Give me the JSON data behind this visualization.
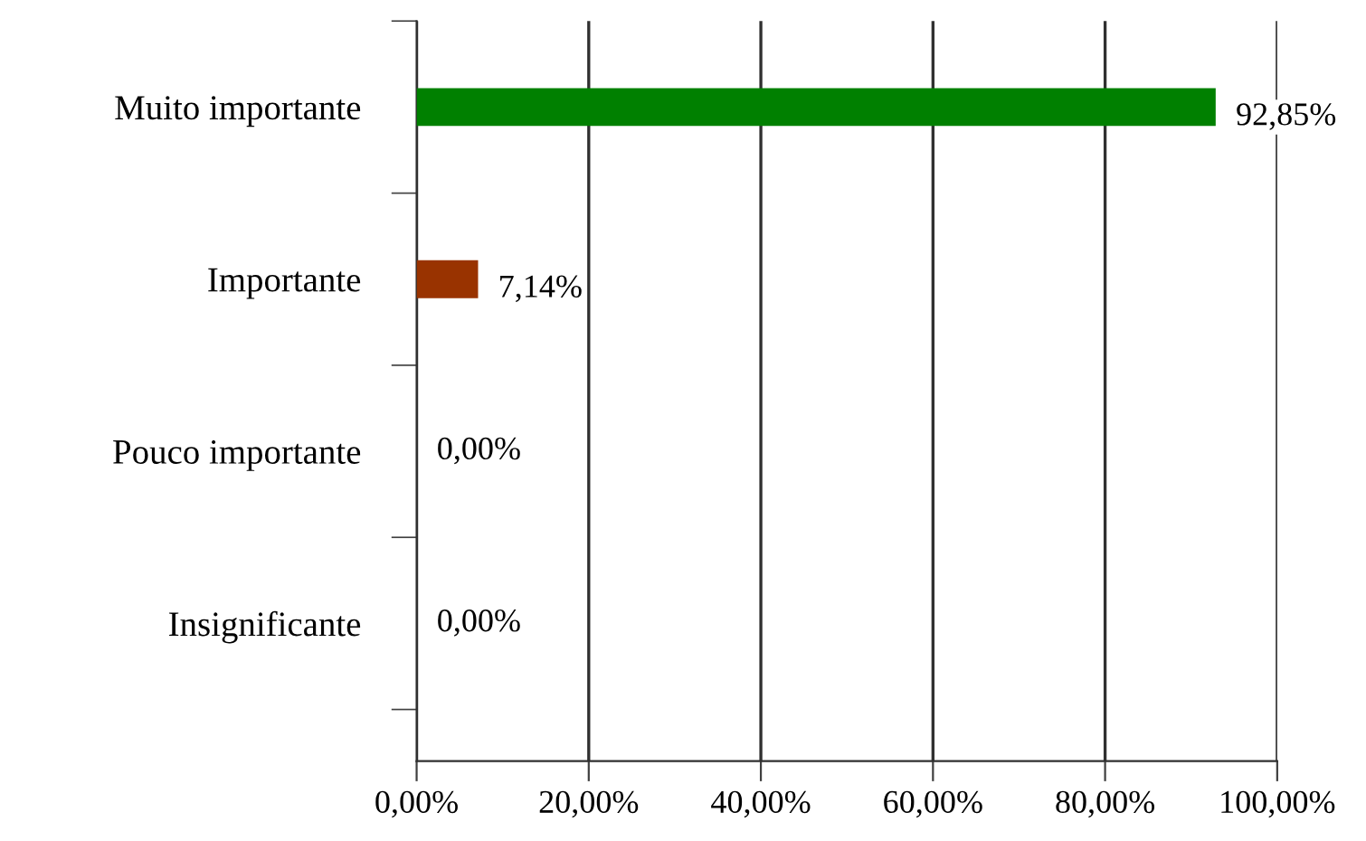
{
  "chart_data": {
    "type": "bar",
    "orientation": "horizontal",
    "categories": [
      "Muito importante",
      "Importante",
      "Pouco importante",
      "Insignificante"
    ],
    "values": [
      92.85,
      7.14,
      0,
      0
    ],
    "colors": [
      "#008000",
      "#993300",
      "#993300",
      "#993300"
    ],
    "value_labels": [
      "92,85%",
      "7,14%",
      "0,00%",
      "0,00%"
    ],
    "xlim": [
      0,
      100
    ],
    "xticks": [
      {
        "value": 0,
        "label": "0,00%"
      },
      {
        "value": 20,
        "label": "20,00%"
      },
      {
        "value": 40,
        "label": "40,00%"
      },
      {
        "value": 60,
        "label": "60,00%"
      },
      {
        "value": 80,
        "label": "80,00%"
      },
      {
        "value": 100,
        "label": "100,00%"
      }
    ],
    "grid": "x",
    "legend": false
  }
}
